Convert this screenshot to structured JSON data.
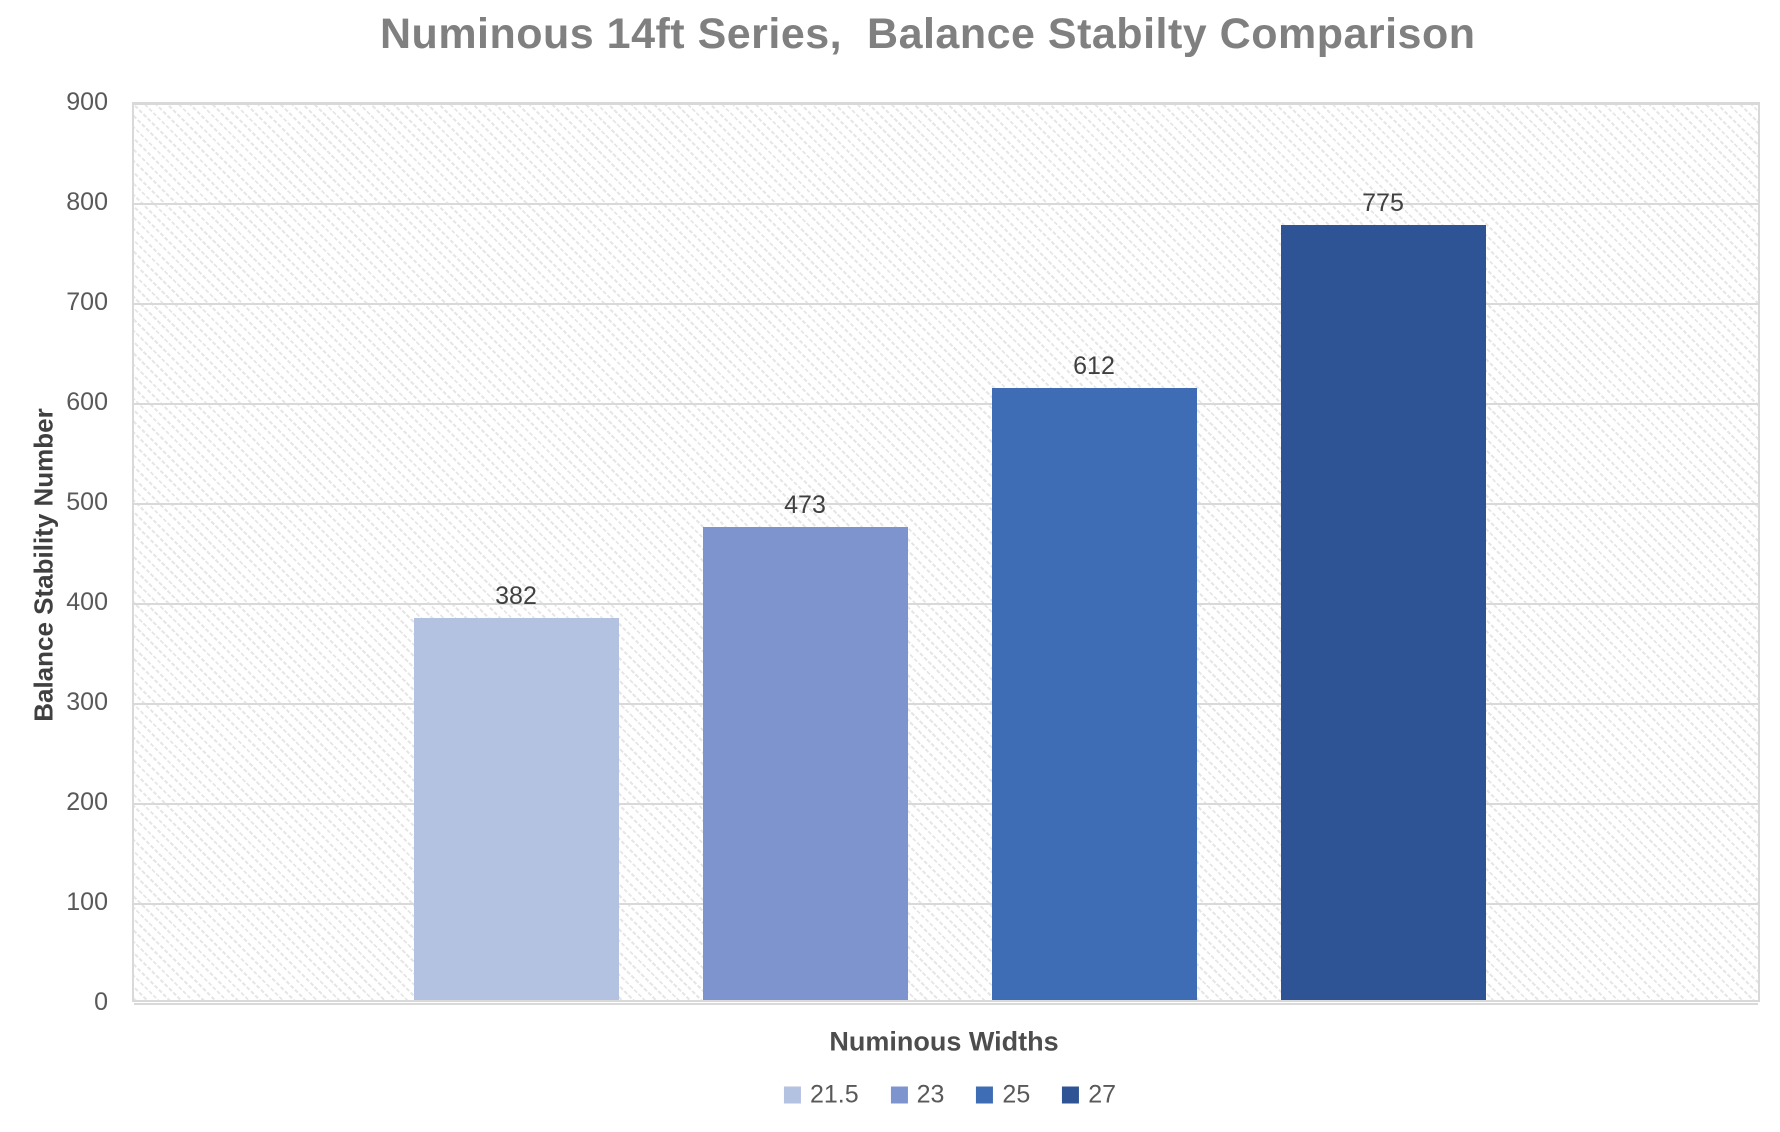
{
  "title": "Numinous 14ft Series,  Balance Stabilty Comparison",
  "chart_data": {
    "type": "bar",
    "title": "Numinous 14ft Series,  Balance Stabilty Comparison",
    "xlabel": "Numinous Widths",
    "ylabel": "Balance Stability Number",
    "series": [
      {
        "name": "21.5",
        "value": 382,
        "color": "#b4c2e2"
      },
      {
        "name": "23",
        "value": 473,
        "color": "#7d94cf"
      },
      {
        "name": "25",
        "value": 612,
        "color": "#3e6cb5"
      },
      {
        "name": "27",
        "value": 775,
        "color": "#2f5496"
      }
    ],
    "data_labels": [
      "382",
      "473",
      "612",
      "775"
    ],
    "ylim": [
      0,
      900
    ],
    "yticks": [
      900,
      800,
      700,
      600,
      500,
      400,
      300,
      200,
      100,
      0
    ],
    "grid": "horizontal-gridlines-on",
    "legend_position": "bottom",
    "plot_background": "diagonal-hatch-pattern"
  },
  "colors": {
    "title_text": "#808080",
    "tick_text": "#595959",
    "axis_title_text": "#404040",
    "data_label_text": "#404040",
    "gridline": "#d9d9d9"
  }
}
